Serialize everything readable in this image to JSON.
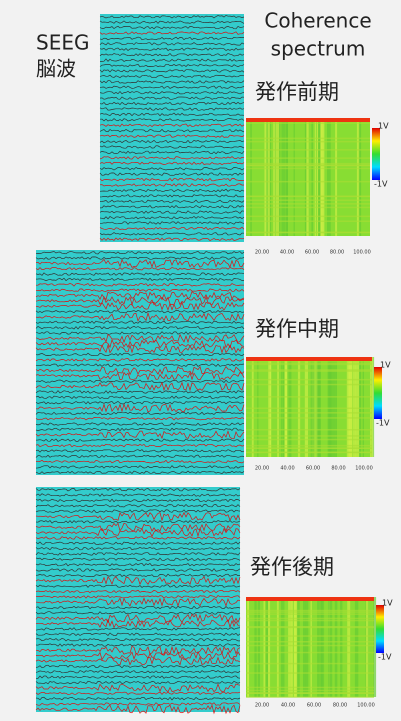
{
  "left_label": {
    "line1": "SEEG",
    "line2": "脳波"
  },
  "right_label": {
    "line1": "Coherence",
    "line2": "spectrum"
  },
  "panels": [
    {
      "phase": "発作前期",
      "colorbar": {
        "top": "1V",
        "bottom": "-1V"
      },
      "x_ticks": [
        "20.00",
        "40.00",
        "60.00",
        "80.00",
        "100.00"
      ]
    },
    {
      "phase": "発作中期",
      "colorbar": {
        "top": "1V",
        "bottom": "-1V"
      },
      "x_ticks": [
        "20.00",
        "40.00",
        "60.00",
        "80.00",
        "100.00"
      ]
    },
    {
      "phase": "発作後期",
      "colorbar": {
        "top": "1V",
        "bottom": "-1V"
      },
      "x_ticks": [
        "20.00",
        "40.00",
        "60.00",
        "80.00",
        "100.00"
      ]
    }
  ]
}
